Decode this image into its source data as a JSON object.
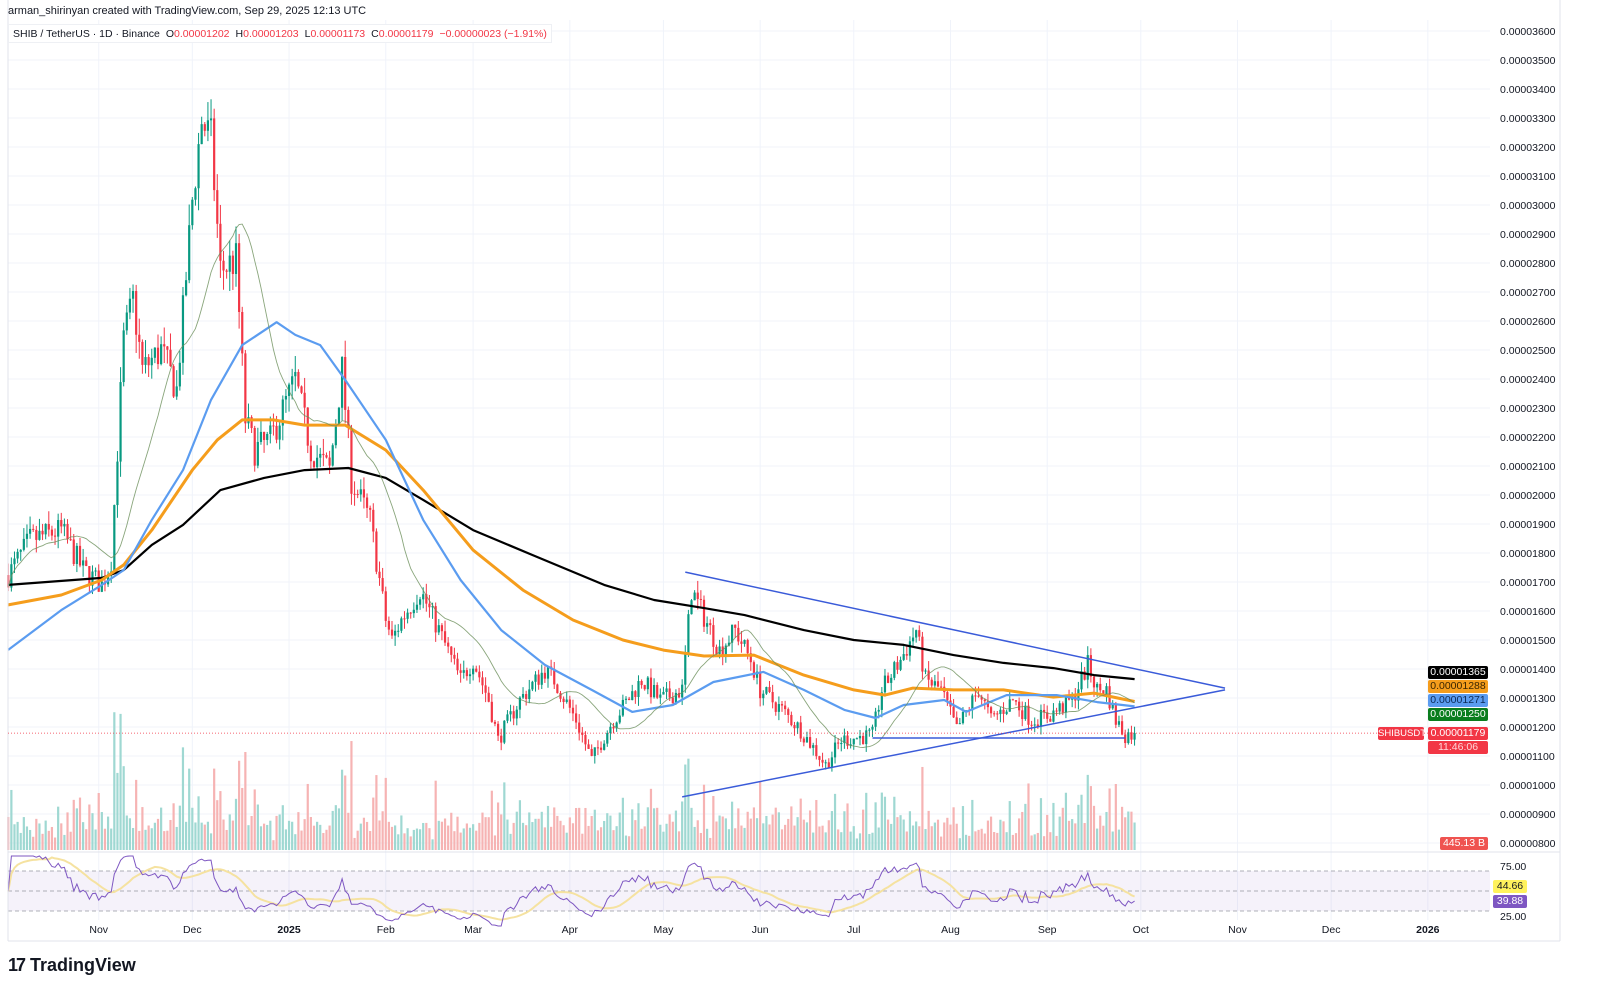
{
  "header": {
    "attribution": "arman_shirinyan created with TradingView.com, Sep 29, 2025 12:13 UTC",
    "symbol": "SHIB / TetherUS · 1D · Binance",
    "open_label": "O",
    "open": "0.00001202",
    "high_label": "H",
    "high": "0.00001203",
    "low_label": "L",
    "low": "0.00001173",
    "close_label": "C",
    "close": "0.00001179",
    "change": "−0.00000023 (−1.91%)"
  },
  "badges": {
    "ma200": "0.00001365",
    "ma100": "0.00001288",
    "ma50": "0.00001271",
    "ma20": "0.00001250",
    "ticker": "SHIBUSDT",
    "last_price": "0.00001179",
    "countdown": "11:46:06",
    "volume": "445.13 B",
    "rsi_ma": "44.66",
    "rsi": "39.88"
  },
  "brand": {
    "logo_mark": "17",
    "name": "TradingView"
  },
  "colors": {
    "up": "#089981",
    "down": "#f23645",
    "ma20": "#6b8e5a",
    "ma50": "#5b9cf0",
    "ma100": "#f59d1c",
    "ma200": "#000000",
    "trendline": "#3a5bd9",
    "rsi": "#7e57c2",
    "rsi_ma": "#f5e2a0"
  },
  "chart_data": {
    "type": "candlestick",
    "title": "SHIB / TetherUS · 1D · Binance",
    "price_axis_ticks": [
      "0.00003600",
      "0.00003500",
      "0.00003400",
      "0.00003300",
      "0.00003200",
      "0.00003100",
      "0.00003000",
      "0.00002900",
      "0.00002800",
      "0.00002700",
      "0.00002600",
      "0.00002500",
      "0.00002400",
      "0.00002300",
      "0.00002200",
      "0.00002100",
      "0.00002000",
      "0.00001900",
      "0.00001800",
      "0.00001700",
      "0.00001600",
      "0.00001500",
      "0.00001400",
      "0.00001300",
      "0.00001200",
      "0.00001100",
      "0.00001000",
      "0.00000900",
      "0.00000800"
    ],
    "time_axis_ticks": [
      {
        "label": "Nov",
        "date": "2024-11-01"
      },
      {
        "label": "Dec",
        "date": "2024-12-01"
      },
      {
        "label": "2025",
        "date": "2025-01-01"
      },
      {
        "label": "Feb",
        "date": "2025-02-01"
      },
      {
        "label": "Mar",
        "date": "2025-03-01"
      },
      {
        "label": "Apr",
        "date": "2025-04-01"
      },
      {
        "label": "May",
        "date": "2025-05-01"
      },
      {
        "label": "Jun",
        "date": "2025-06-01"
      },
      {
        "label": "Jul",
        "date": "2025-07-01"
      },
      {
        "label": "Aug",
        "date": "2025-08-01"
      },
      {
        "label": "Sep",
        "date": "2025-09-01"
      },
      {
        "label": "Oct",
        "date": "2025-10-01"
      },
      {
        "label": "Nov",
        "date": "2025-11-01"
      },
      {
        "label": "Dec",
        "date": "2025-12-01"
      },
      {
        "label": "2026",
        "date": "2026-01-01"
      }
    ],
    "ylim": [
      7.5e-06,
      3.7e-05
    ],
    "close_path": [
      [
        "2024-10-03",
        1.724e-05
      ],
      [
        "2024-10-10",
        1.845e-05
      ],
      [
        "2024-10-20",
        1.879e-05
      ],
      [
        "2024-10-27",
        1.741e-05
      ],
      [
        "2024-11-02",
        1.69e-05
      ],
      [
        "2024-11-05",
        1.776e-05
      ],
      [
        "2024-11-09",
        2.534e-05
      ],
      [
        "2024-11-12",
        2.672e-05
      ],
      [
        "2024-11-15",
        2.431e-05
      ],
      [
        "2024-11-21",
        2.5e-05
      ],
      [
        "2024-11-26",
        2.362e-05
      ],
      [
        "2024-12-01",
        3.017e-05
      ],
      [
        "2024-12-04",
        3.293e-05
      ],
      [
        "2024-12-07",
        3.224e-05
      ],
      [
        "2024-12-10",
        2.776e-05
      ],
      [
        "2024-12-15",
        2.81e-05
      ],
      [
        "2024-12-18",
        2.259e-05
      ],
      [
        "2024-12-21",
        2.155e-05
      ],
      [
        "2024-12-26",
        2.19e-05
      ],
      [
        "2025-01-03",
        2.397e-05
      ],
      [
        "2025-01-08",
        2.155e-05
      ],
      [
        "2025-01-14",
        2.086e-05
      ],
      [
        "2025-01-18",
        2.431e-05
      ],
      [
        "2025-01-21",
        2.052e-05
      ],
      [
        "2025-01-27",
        1.914e-05
      ],
      [
        "2025-02-01",
        1.569e-05
      ],
      [
        "2025-02-03",
        1.5e-05
      ],
      [
        "2025-02-06",
        1.569e-05
      ],
      [
        "2025-02-12",
        1.672e-05
      ],
      [
        "2025-02-18",
        1.534e-05
      ],
      [
        "2025-02-25",
        1.362e-05
      ],
      [
        "2025-03-01",
        1.431e-05
      ],
      [
        "2025-03-06",
        1.293e-05
      ],
      [
        "2025-03-09",
        1.155e-05
      ],
      [
        "2025-03-16",
        1.293e-05
      ],
      [
        "2025-03-24",
        1.397e-05
      ],
      [
        "2025-03-27",
        1.362e-05
      ],
      [
        "2025-04-03",
        1.224e-05
      ],
      [
        "2025-04-08",
        1.086e-05
      ],
      [
        "2025-04-14",
        1.207e-05
      ],
      [
        "2025-04-24",
        1.362e-05
      ],
      [
        "2025-04-30",
        1.293e-05
      ],
      [
        "2025-05-07",
        1.328e-05
      ],
      [
        "2025-05-10",
        1.672e-05
      ],
      [
        "2025-05-13",
        1.603e-05
      ],
      [
        "2025-05-19",
        1.465e-05
      ],
      [
        "2025-05-24",
        1.534e-05
      ],
      [
        "2025-05-29",
        1.431e-05
      ],
      [
        "2025-06-01",
        1.328e-05
      ],
      [
        "2025-06-08",
        1.259e-05
      ],
      [
        "2025-06-14",
        1.19e-05
      ],
      [
        "2025-06-22",
        1.069e-05
      ],
      [
        "2025-06-27",
        1.155e-05
      ],
      [
        "2025-07-07",
        1.172e-05
      ],
      [
        "2025-07-10",
        1.328e-05
      ],
      [
        "2025-07-16",
        1.431e-05
      ],
      [
        "2025-07-21",
        1.534e-05
      ],
      [
        "2025-07-24",
        1.362e-05
      ],
      [
        "2025-07-29",
        1.328e-05
      ],
      [
        "2025-08-03",
        1.19e-05
      ],
      [
        "2025-08-10",
        1.328e-05
      ],
      [
        "2025-08-14",
        1.224e-05
      ],
      [
        "2025-08-21",
        1.293e-05
      ],
      [
        "2025-08-27",
        1.224e-05
      ],
      [
        "2025-09-02",
        1.241e-05
      ],
      [
        "2025-09-09",
        1.293e-05
      ],
      [
        "2025-09-14",
        1.414e-05
      ],
      [
        "2025-09-17",
        1.328e-05
      ],
      [
        "2025-09-20",
        1.328e-05
      ],
      [
        "2025-09-23",
        1.224e-05
      ],
      [
        "2025-09-26",
        1.172e-05
      ],
      [
        "2025-09-29",
        1.179e-05
      ]
    ],
    "moving_averages": [
      {
        "key": "ma200",
        "points": [
          [
            "2024-10-03",
            1.69e-05
          ],
          [
            "2024-11-02",
            1.714e-05
          ],
          [
            "2024-11-09",
            1.741e-05
          ],
          [
            "2024-11-18",
            1.828e-05
          ],
          [
            "2024-11-28",
            1.897e-05
          ],
          [
            "2024-12-10",
            2.017e-05
          ],
          [
            "2024-12-24",
            2.059e-05
          ],
          [
            "2025-01-06",
            2.086e-05
          ],
          [
            "2025-01-20",
            2.093e-05
          ],
          [
            "2025-02-01",
            2.059e-05
          ],
          [
            "2025-02-13",
            1.983e-05
          ],
          [
            "2025-03-01",
            1.879e-05
          ],
          [
            "2025-03-20",
            1.793e-05
          ],
          [
            "2025-04-12",
            1.69e-05
          ],
          [
            "2025-04-28",
            1.638e-05
          ],
          [
            "2025-05-14",
            1.61e-05
          ],
          [
            "2025-05-27",
            1.586e-05
          ],
          [
            "2025-06-15",
            1.534e-05
          ],
          [
            "2025-07-01",
            1.5e-05
          ],
          [
            "2025-07-17",
            1.483e-05
          ],
          [
            "2025-08-02",
            1.448e-05
          ],
          [
            "2025-08-18",
            1.421e-05
          ],
          [
            "2025-09-03",
            1.403e-05
          ],
          [
            "2025-09-16",
            1.379e-05
          ],
          [
            "2025-09-29",
            1.365e-05
          ]
        ]
      },
      {
        "key": "ma100",
        "points": [
          [
            "2024-10-03",
            1.621e-05
          ],
          [
            "2024-10-20",
            1.655e-05
          ],
          [
            "2024-11-02",
            1.707e-05
          ],
          [
            "2024-11-09",
            1.759e-05
          ],
          [
            "2024-11-18",
            1.879e-05
          ],
          [
            "2024-12-01",
            2.086e-05
          ],
          [
            "2024-12-09",
            2.19e-05
          ],
          [
            "2024-12-17",
            2.259e-05
          ],
          [
            "2024-12-27",
            2.259e-05
          ],
          [
            "2025-01-06",
            2.241e-05
          ],
          [
            "2025-01-19",
            2.241e-05
          ],
          [
            "2025-02-01",
            2.155e-05
          ],
          [
            "2025-02-13",
            2.017e-05
          ],
          [
            "2025-03-01",
            1.81e-05
          ],
          [
            "2025-03-17",
            1.672e-05
          ],
          [
            "2025-04-02",
            1.569e-05
          ],
          [
            "2025-04-18",
            1.5e-05
          ],
          [
            "2025-05-01",
            1.465e-05
          ],
          [
            "2025-05-14",
            1.445e-05
          ],
          [
            "2025-05-30",
            1.448e-05
          ],
          [
            "2025-06-15",
            1.379e-05
          ],
          [
            "2025-07-01",
            1.328e-05
          ],
          [
            "2025-07-11",
            1.31e-05
          ],
          [
            "2025-07-20",
            1.334e-05
          ],
          [
            "2025-08-02",
            1.328e-05
          ],
          [
            "2025-08-18",
            1.328e-05
          ],
          [
            "2025-09-03",
            1.303e-05
          ],
          [
            "2025-09-16",
            1.317e-05
          ],
          [
            "2025-09-29",
            1.288e-05
          ]
        ]
      },
      {
        "key": "ma50",
        "points": [
          [
            "2024-10-03",
            1.466e-05
          ],
          [
            "2024-10-20",
            1.603e-05
          ],
          [
            "2024-11-02",
            1.69e-05
          ],
          [
            "2024-11-09",
            1.741e-05
          ],
          [
            "2024-11-18",
            1.914e-05
          ],
          [
            "2024-11-28",
            2.086e-05
          ],
          [
            "2024-12-07",
            2.328e-05
          ],
          [
            "2024-12-17",
            2.517e-05
          ],
          [
            "2024-12-28",
            2.596e-05
          ],
          [
            "2025-01-03",
            2.552e-05
          ],
          [
            "2025-01-11",
            2.517e-05
          ],
          [
            "2025-01-19",
            2.397e-05
          ],
          [
            "2025-02-01",
            2.19e-05
          ],
          [
            "2025-02-13",
            1.914e-05
          ],
          [
            "2025-02-25",
            1.707e-05
          ],
          [
            "2025-03-10",
            1.534e-05
          ],
          [
            "2025-03-24",
            1.414e-05
          ],
          [
            "2025-04-08",
            1.328e-05
          ],
          [
            "2025-04-21",
            1.252e-05
          ],
          [
            "2025-05-04",
            1.276e-05
          ],
          [
            "2025-05-17",
            1.355e-05
          ],
          [
            "2025-06-02",
            1.39e-05
          ],
          [
            "2025-06-15",
            1.328e-05
          ],
          [
            "2025-06-28",
            1.259e-05
          ],
          [
            "2025-07-08",
            1.231e-05
          ],
          [
            "2025-07-17",
            1.276e-05
          ],
          [
            "2025-07-30",
            1.293e-05
          ],
          [
            "2025-08-06",
            1.252e-05
          ],
          [
            "2025-08-19",
            1.31e-05
          ],
          [
            "2025-09-04",
            1.31e-05
          ],
          [
            "2025-09-17",
            1.286e-05
          ],
          [
            "2025-09-29",
            1.271e-05
          ]
        ]
      }
    ],
    "trendlines": [
      {
        "name": "descending-resistance",
        "from": [
          "2025-05-08",
          1.734e-05
        ],
        "to": [
          "2025-10-28",
          1.334e-05
        ]
      },
      {
        "name": "ascending-support",
        "from": [
          "2025-05-07",
          9.59e-06
        ],
        "to": [
          "2025-10-28",
          1.328e-05
        ]
      },
      {
        "name": "horizontal-support",
        "from": [
          "2025-07-07",
          1.162e-05
        ],
        "to": [
          "2025-09-26",
          1.162e-05
        ]
      }
    ],
    "rsi": {
      "upper_band": 70,
      "middle": 50,
      "lower_band": 30,
      "axis_labels": [
        "75.00",
        "25.00"
      ],
      "last": 39.88,
      "ma_last": 44.66
    }
  }
}
